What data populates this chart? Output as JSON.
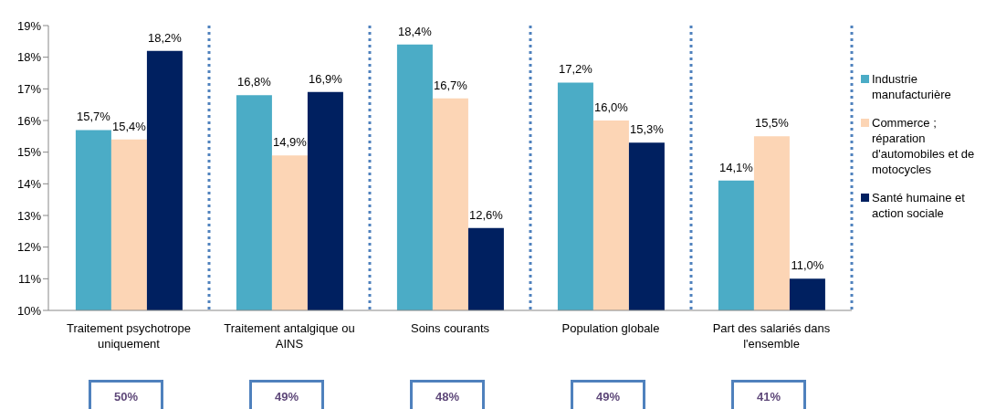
{
  "chart_data": {
    "type": "bar",
    "categories": [
      "Traitement psychotrope uniquement",
      "Traitement antalgique ou AINS",
      "Soins courants",
      "Population globale",
      "Part des salariés dans l'ensemble"
    ],
    "series": [
      {
        "name": "Industrie manufacturière",
        "color": "#4bacc6",
        "values": [
          15.7,
          16.8,
          18.4,
          17.2,
          14.1
        ],
        "value_labels": [
          "15,7%",
          "16,8%",
          "18,4%",
          "17,2%",
          "14,1%"
        ]
      },
      {
        "name": "Commerce ; réparation d'automobiles et de motocycles",
        "color": "#fcd5b5",
        "values": [
          15.4,
          14.9,
          16.7,
          16.0,
          15.5
        ],
        "value_labels": [
          "15,4%",
          "14,9%",
          "16,7%",
          "16,0%",
          "15,5%"
        ]
      },
      {
        "name": "Santé humaine et action sociale",
        "color": "#002060",
        "values": [
          18.2,
          16.9,
          12.6,
          15.3,
          11.0
        ],
        "value_labels": [
          "18,2%",
          "16,9%",
          "12,6%",
          "15,3%",
          "11,0%"
        ]
      }
    ],
    "ylim": [
      10,
      19
    ],
    "yticks": [
      {
        "value": 10,
        "label": "10%"
      },
      {
        "value": 11,
        "label": "11%"
      },
      {
        "value": 12,
        "label": "12%"
      },
      {
        "value": 13,
        "label": "13%"
      },
      {
        "value": 14,
        "label": "14%"
      },
      {
        "value": 15,
        "label": "15%"
      },
      {
        "value": 16,
        "label": "16%"
      },
      {
        "value": 17,
        "label": "17%"
      },
      {
        "value": 18,
        "label": "18%"
      },
      {
        "value": 19,
        "label": "19%"
      }
    ],
    "grid": false,
    "legend": "right",
    "annotations": [
      "50%",
      "49%",
      "48%",
      "49%",
      "41%"
    ]
  }
}
